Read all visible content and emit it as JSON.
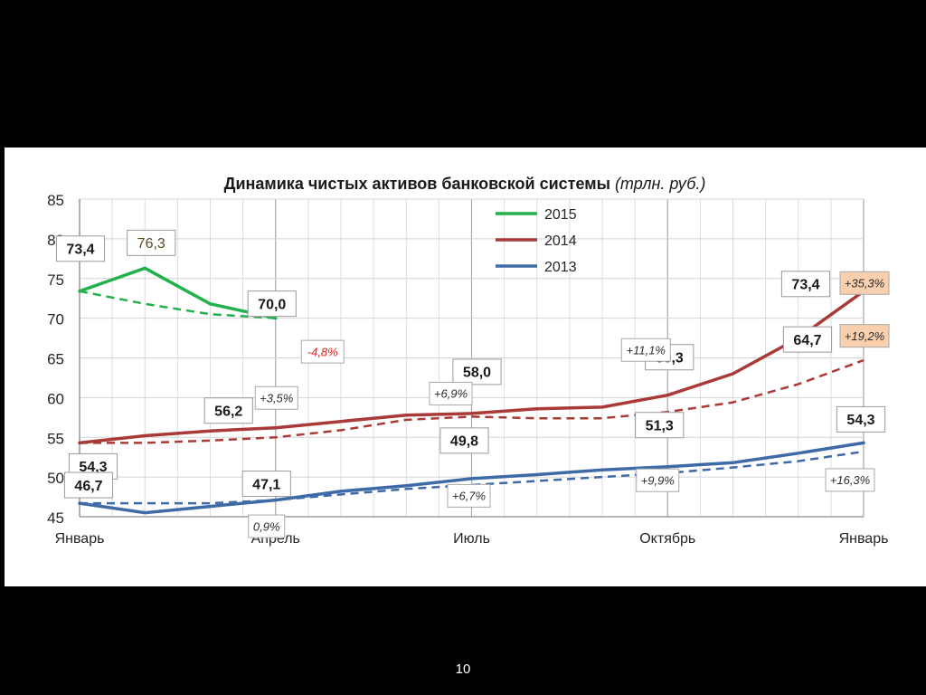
{
  "chart_data": {
    "type": "line",
    "title": "Динамика чистых активов банковской системы",
    "title_unit": "(трлн. руб.)",
    "ylim": [
      45,
      85
    ],
    "yticks": [
      85,
      80,
      75,
      70,
      65,
      60,
      55,
      50,
      45
    ],
    "xlim": [
      0,
      12
    ],
    "xtick_labels": [
      {
        "x": 0,
        "label": "Январь"
      },
      {
        "x": 3,
        "label": "Апрель"
      },
      {
        "x": 6,
        "label": "Июль"
      },
      {
        "x": 9,
        "label": "Октябрь"
      },
      {
        "x": 12,
        "label": "Январь"
      }
    ],
    "grid": true,
    "legend_position": "top-center",
    "series": [
      {
        "name": "2015",
        "color": "#22b14c",
        "x": [
          0,
          1,
          2,
          3
        ],
        "values": [
          73.4,
          76.3,
          71.8,
          70.0
        ],
        "trend_x": [
          0,
          1,
          2,
          3
        ],
        "trend_values": [
          73.4,
          71.8,
          70.5,
          70.0
        ]
      },
      {
        "name": "2014",
        "color": "#a93a38",
        "x": [
          0,
          1,
          2,
          3,
          4,
          5,
          6,
          7,
          8,
          9,
          10,
          11,
          12
        ],
        "values": [
          54.3,
          55.2,
          55.8,
          56.2,
          57.0,
          57.8,
          58.0,
          58.6,
          58.8,
          60.3,
          63.0,
          67.5,
          73.4
        ],
        "trend_x": [
          0,
          1,
          2,
          3,
          4,
          5,
          6,
          7,
          8,
          9,
          10,
          11,
          12
        ],
        "trend_values": [
          54.3,
          54.3,
          54.6,
          55.0,
          55.9,
          57.2,
          57.6,
          57.4,
          57.4,
          58.2,
          59.4,
          61.7,
          64.7
        ]
      },
      {
        "name": "2013",
        "color": "#3f6aa8",
        "x": [
          0,
          1,
          2,
          3,
          4,
          5,
          6,
          7,
          8,
          9,
          10,
          11,
          12
        ],
        "values": [
          46.7,
          45.5,
          46.3,
          47.1,
          48.2,
          48.9,
          49.8,
          50.3,
          50.9,
          51.3,
          51.8,
          53.0,
          54.3
        ],
        "trend_x": [
          0,
          1,
          2,
          3,
          4,
          5,
          6,
          7,
          8,
          9,
          10,
          11,
          12
        ],
        "trend_values": [
          46.7,
          46.7,
          46.7,
          47.1,
          47.8,
          48.5,
          49.0,
          49.5,
          50.0,
          50.5,
          51.2,
          52.0,
          53.2
        ]
      }
    ],
    "annotations": [
      {
        "text": "73,4",
        "x": 0,
        "y": 73.4,
        "style": "value"
      },
      {
        "text": "76,3",
        "x": 1,
        "y": 76.3,
        "style": "value-plain"
      },
      {
        "text": "70,0",
        "x": 3,
        "y": 70.0,
        "style": "value"
      },
      {
        "text": "-4,8%",
        "x": 3,
        "y": 70.0,
        "style": "pct-red"
      },
      {
        "text": "54,3",
        "x": 0,
        "y": 54.3,
        "style": "value"
      },
      {
        "text": "56,2",
        "x": 3,
        "y": 56.2,
        "style": "value"
      },
      {
        "text": "+3,5%",
        "x": 3,
        "y": 56.2,
        "style": "pct"
      },
      {
        "text": "58,0",
        "x": 6,
        "y": 58.0,
        "style": "value"
      },
      {
        "text": "+6,9%",
        "x": 6,
        "y": 58.0,
        "style": "pct"
      },
      {
        "text": "60,3",
        "x": 9,
        "y": 60.3,
        "style": "value"
      },
      {
        "text": "+11,1%",
        "x": 9,
        "y": 60.3,
        "style": "pct"
      },
      {
        "text": "73,4",
        "x": 12,
        "y": 73.4,
        "style": "value"
      },
      {
        "text": "+35,3%",
        "x": 12,
        "y": 73.4,
        "style": "pct-orange"
      },
      {
        "text": "64,7",
        "x": 12,
        "y": 64.7,
        "style": "value"
      },
      {
        "text": "+19,2%",
        "x": 12,
        "y": 64.7,
        "style": "pct-orange"
      },
      {
        "text": "46,7",
        "x": 0,
        "y": 46.7,
        "style": "value"
      },
      {
        "text": "47,1",
        "x": 3,
        "y": 47.1,
        "style": "value"
      },
      {
        "text": "0,9%",
        "x": 3,
        "y": 47.1,
        "style": "pct"
      },
      {
        "text": "49,8",
        "x": 6,
        "y": 49.8,
        "style": "value"
      },
      {
        "text": "+6,7%",
        "x": 6,
        "y": 49.8,
        "style": "pct"
      },
      {
        "text": "51,3",
        "x": 9,
        "y": 51.3,
        "style": "value"
      },
      {
        "text": "+9,9%",
        "x": 9,
        "y": 51.3,
        "style": "pct"
      },
      {
        "text": "54,3",
        "x": 12,
        "y": 54.3,
        "style": "value"
      },
      {
        "text": "+16,3%",
        "x": 12,
        "y": 54.3,
        "style": "pct"
      }
    ]
  },
  "slide": {
    "page_number": "10"
  }
}
